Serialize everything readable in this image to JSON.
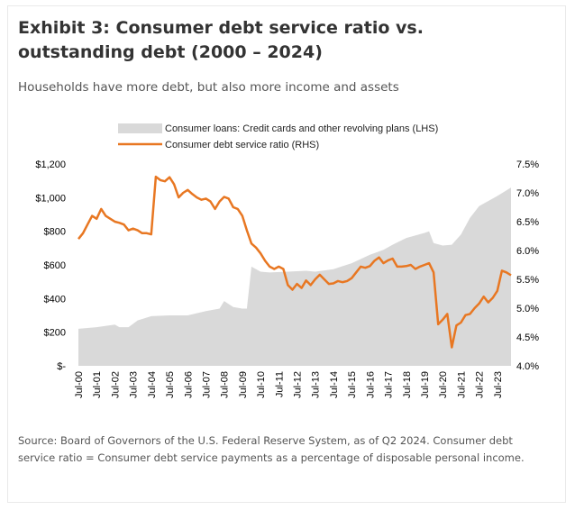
{
  "header": {
    "title": "Exhibit 3: Consumer debt service ratio vs. outstanding debt (2000 – 2024)",
    "subtitle": "Households have more debt, but also more income and assets"
  },
  "footer": {
    "source": "Source: Board of Governors of the U.S. Federal Reserve System, as of Q2 2024. Consumer debt service ratio = Consumer debt service payments as a percentage of disposable personal income."
  },
  "colors": {
    "area": "#d9d9d9",
    "line": "#e87722"
  },
  "chart_data": {
    "type": "area+line",
    "legend": [
      "Consumer loans: Credit cards and other revolving plans (LHS)",
      "Consumer debt service ratio (RHS)"
    ],
    "legend_position": "top-center",
    "grid": false,
    "x_start_year": 2000.5,
    "x_end_year": 2024.25,
    "x_tick_labels": [
      "Jul-00",
      "Jul-01",
      "Jul-02",
      "Jul-03",
      "Jul-04",
      "Jul-05",
      "Jul-06",
      "Jul-07",
      "Jul-08",
      "Jul-09",
      "Jul-10",
      "Jul-11",
      "Jul-12",
      "Jul-13",
      "Jul-14",
      "Jul-15",
      "Jul-16",
      "Jul-17",
      "Jul-18",
      "Jul-19",
      "Jul-20",
      "Jul-21",
      "Jul-22",
      "Jul-23"
    ],
    "left_axis": {
      "min": 0,
      "max": 1200,
      "ticks": [
        0,
        200,
        400,
        600,
        800,
        1000,
        1200
      ],
      "tick_labels": [
        "$-",
        "$200",
        "$400",
        "$600",
        "$800",
        "$1,000",
        "$1,200"
      ]
    },
    "right_axis": {
      "min": 4.0,
      "max": 7.5,
      "ticks": [
        4.0,
        4.5,
        5.0,
        5.5,
        6.0,
        6.5,
        7.0,
        7.5
      ],
      "tick_labels": [
        "4.0%",
        "4.5%",
        "5.0%",
        "5.5%",
        "6.0%",
        "6.5%",
        "7.0%",
        "7.5%"
      ]
    },
    "series": [
      {
        "name": "Consumer loans: Credit cards and other revolving plans (LHS)",
        "kind": "area",
        "axis": "left",
        "points": [
          [
            2000.5,
            220
          ],
          [
            2001.5,
            230
          ],
          [
            2002.5,
            245
          ],
          [
            2002.75,
            230
          ],
          [
            2003.25,
            230
          ],
          [
            2003.75,
            270
          ],
          [
            2004.5,
            295
          ],
          [
            2005.5,
            300
          ],
          [
            2006.5,
            300
          ],
          [
            2007.5,
            325
          ],
          [
            2008.25,
            340
          ],
          [
            2008.5,
            385
          ],
          [
            2009.0,
            350
          ],
          [
            2009.5,
            340
          ],
          [
            2009.75,
            340
          ],
          [
            2010.0,
            590
          ],
          [
            2010.5,
            560
          ],
          [
            2011.0,
            555
          ],
          [
            2012.0,
            560
          ],
          [
            2013.0,
            565
          ],
          [
            2013.5,
            560
          ],
          [
            2014.5,
            575
          ],
          [
            2015.5,
            610
          ],
          [
            2016.5,
            660
          ],
          [
            2017.25,
            690
          ],
          [
            2017.75,
            720
          ],
          [
            2018.5,
            760
          ],
          [
            2019.5,
            790
          ],
          [
            2019.75,
            800
          ],
          [
            2020.0,
            730
          ],
          [
            2020.5,
            715
          ],
          [
            2021.0,
            720
          ],
          [
            2021.5,
            780
          ],
          [
            2022.0,
            880
          ],
          [
            2022.5,
            950
          ],
          [
            2023.0,
            980
          ],
          [
            2023.5,
            1010
          ],
          [
            2024.25,
            1060
          ]
        ]
      },
      {
        "name": "Consumer debt service ratio (RHS)",
        "kind": "line",
        "axis": "right",
        "points": [
          [
            2000.5,
            6.2
          ],
          [
            2000.75,
            6.3
          ],
          [
            2001.0,
            6.45
          ],
          [
            2001.25,
            6.6
          ],
          [
            2001.5,
            6.55
          ],
          [
            2001.75,
            6.72
          ],
          [
            2002.0,
            6.6
          ],
          [
            2002.25,
            6.55
          ],
          [
            2002.5,
            6.5
          ],
          [
            2002.75,
            6.48
          ],
          [
            2003.0,
            6.45
          ],
          [
            2003.25,
            6.35
          ],
          [
            2003.5,
            6.38
          ],
          [
            2003.75,
            6.35
          ],
          [
            2004.0,
            6.3
          ],
          [
            2004.25,
            6.3
          ],
          [
            2004.5,
            6.28
          ],
          [
            2004.75,
            7.28
          ],
          [
            2005.0,
            7.22
          ],
          [
            2005.25,
            7.2
          ],
          [
            2005.5,
            7.27
          ],
          [
            2005.75,
            7.15
          ],
          [
            2006.0,
            6.92
          ],
          [
            2006.25,
            7.0
          ],
          [
            2006.5,
            7.05
          ],
          [
            2006.75,
            6.98
          ],
          [
            2007.0,
            6.92
          ],
          [
            2007.25,
            6.88
          ],
          [
            2007.5,
            6.9
          ],
          [
            2007.75,
            6.85
          ],
          [
            2008.0,
            6.72
          ],
          [
            2008.25,
            6.85
          ],
          [
            2008.5,
            6.93
          ],
          [
            2008.75,
            6.9
          ],
          [
            2009.0,
            6.75
          ],
          [
            2009.25,
            6.72
          ],
          [
            2009.5,
            6.6
          ],
          [
            2009.75,
            6.35
          ],
          [
            2010.0,
            6.12
          ],
          [
            2010.25,
            6.05
          ],
          [
            2010.5,
            5.95
          ],
          [
            2010.75,
            5.82
          ],
          [
            2011.0,
            5.72
          ],
          [
            2011.25,
            5.68
          ],
          [
            2011.5,
            5.72
          ],
          [
            2011.75,
            5.68
          ],
          [
            2012.0,
            5.4
          ],
          [
            2012.25,
            5.32
          ],
          [
            2012.5,
            5.42
          ],
          [
            2012.75,
            5.35
          ],
          [
            2013.0,
            5.48
          ],
          [
            2013.25,
            5.4
          ],
          [
            2013.5,
            5.5
          ],
          [
            2013.75,
            5.58
          ],
          [
            2014.0,
            5.5
          ],
          [
            2014.25,
            5.42
          ],
          [
            2014.5,
            5.43
          ],
          [
            2014.75,
            5.47
          ],
          [
            2015.0,
            5.45
          ],
          [
            2015.25,
            5.47
          ],
          [
            2015.5,
            5.52
          ],
          [
            2015.75,
            5.62
          ],
          [
            2016.0,
            5.72
          ],
          [
            2016.25,
            5.7
          ],
          [
            2016.5,
            5.73
          ],
          [
            2016.75,
            5.82
          ],
          [
            2017.0,
            5.88
          ],
          [
            2017.25,
            5.78
          ],
          [
            2017.5,
            5.83
          ],
          [
            2017.75,
            5.86
          ],
          [
            2018.0,
            5.72
          ],
          [
            2018.25,
            5.72
          ],
          [
            2018.5,
            5.73
          ],
          [
            2018.75,
            5.75
          ],
          [
            2019.0,
            5.68
          ],
          [
            2019.25,
            5.72
          ],
          [
            2019.5,
            5.75
          ],
          [
            2019.75,
            5.78
          ],
          [
            2020.0,
            5.62
          ],
          [
            2020.25,
            4.72
          ],
          [
            2020.5,
            4.8
          ],
          [
            2020.75,
            4.9
          ],
          [
            2021.0,
            4.32
          ],
          [
            2021.25,
            4.7
          ],
          [
            2021.5,
            4.75
          ],
          [
            2021.75,
            4.88
          ],
          [
            2022.0,
            4.9
          ],
          [
            2022.25,
            5.0
          ],
          [
            2022.5,
            5.08
          ],
          [
            2022.75,
            5.2
          ],
          [
            2023.0,
            5.1
          ],
          [
            2023.25,
            5.18
          ],
          [
            2023.5,
            5.3
          ],
          [
            2023.75,
            5.65
          ],
          [
            2024.0,
            5.62
          ],
          [
            2024.25,
            5.57
          ]
        ]
      }
    ]
  }
}
